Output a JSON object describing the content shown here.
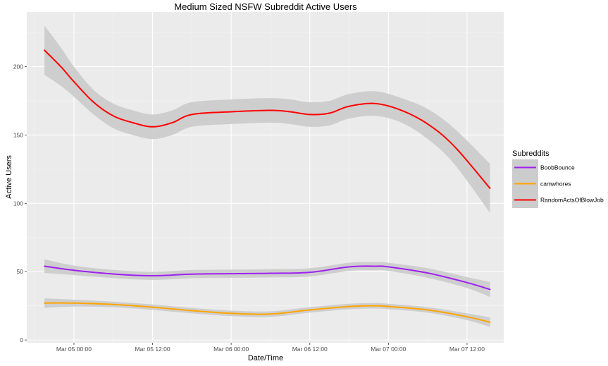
{
  "chart_data": {
    "type": "line",
    "title": "Medium Sized NSFW Subreddit Active Users",
    "xlabel": "Date/Time",
    "ylabel": "Active Users",
    "x_ticks": [
      "Mar 05 00:00",
      "Mar 05 12:00",
      "Mar 06 00:00",
      "Mar 06 12:00",
      "Mar 07 00:00",
      "Mar 07 12:00"
    ],
    "x_tick_hours": [
      0,
      12,
      24,
      36,
      48,
      60
    ],
    "xlim_hours": [
      -7.2,
      65.6
    ],
    "y_ticks": [
      0,
      50,
      100,
      150,
      200
    ],
    "ylim": [
      -2,
      240
    ],
    "grid": true,
    "smoothed_with_confidence_band": true,
    "legend": {
      "title": "Subreddits",
      "placement": "right"
    },
    "band_color": "#cccccc",
    "panel_color": "#ebebeb",
    "series": [
      {
        "name": "BoobBounce",
        "color": "#a020f0",
        "x": [
          -4.5,
          0,
          6,
          12,
          18,
          24,
          30,
          36,
          42,
          46,
          48,
          54,
          60,
          63.5
        ],
        "y": [
          54,
          51,
          48.3,
          47,
          48.2,
          48.5,
          48.8,
          49.5,
          53.5,
          54,
          53.5,
          49,
          42,
          37
        ],
        "band": [
          5,
          3.5,
          3,
          3,
          3,
          3,
          3,
          3,
          3,
          3,
          3,
          3.5,
          4,
          5.5
        ]
      },
      {
        "name": "camwhores",
        "color": "#ffa500",
        "x": [
          -4.5,
          0,
          6,
          12,
          18,
          24,
          30,
          36,
          42,
          46,
          48,
          54,
          60,
          63.5
        ],
        "y": [
          27,
          27,
          26,
          24,
          21.5,
          19.5,
          19,
          22,
          24.5,
          25,
          24.5,
          22,
          17,
          13
        ],
        "band": [
          3.5,
          2.5,
          2,
          2,
          2,
          2,
          2,
          2,
          2,
          2,
          2,
          2,
          2.5,
          3.5
        ]
      },
      {
        "name": "RandomActsOfBlowJob",
        "color": "#ff0000",
        "x": [
          -4.5,
          -2,
          0,
          3,
          6,
          9,
          12,
          15,
          18,
          24,
          30,
          33,
          36,
          39,
          42,
          46,
          50,
          54,
          58,
          63.5
        ],
        "y": [
          212,
          200,
          189,
          174,
          164,
          159,
          156,
          159,
          165,
          167,
          168,
          167,
          165,
          166,
          171,
          173,
          168,
          158,
          142,
          111
        ],
        "band": [
          18,
          14,
          11,
          9,
          9,
          9,
          9,
          9,
          9,
          9,
          9,
          9,
          9,
          9,
          9,
          9,
          9,
          11,
          13,
          18
        ]
      }
    ]
  }
}
